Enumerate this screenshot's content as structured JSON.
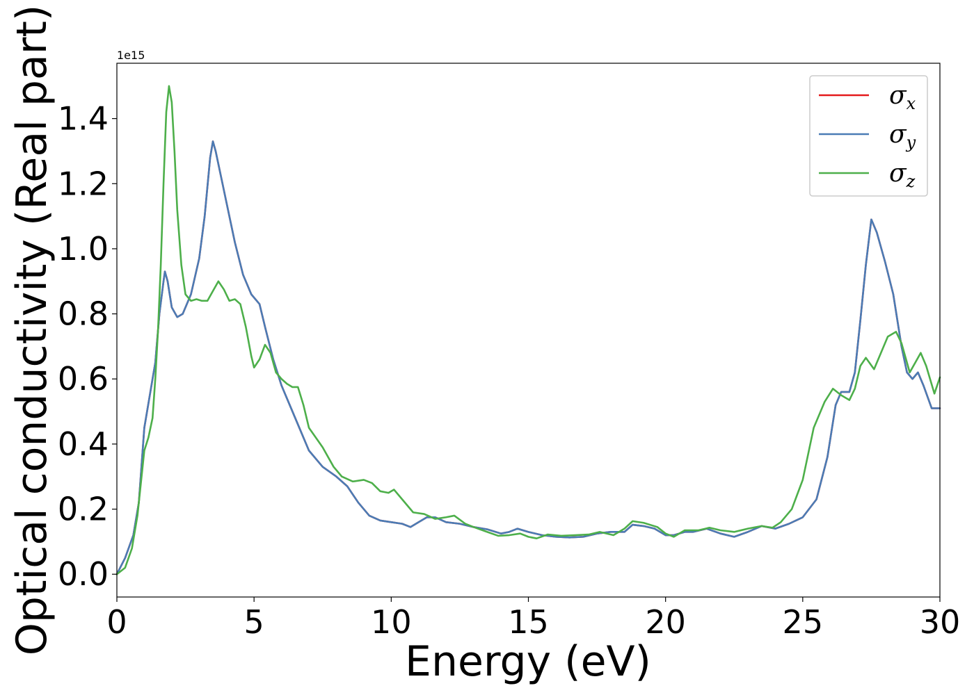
{
  "chart_data": {
    "type": "line",
    "title": "",
    "xlabel": "Energy (eV)",
    "ylabel": "Optical conductivity (Real part)",
    "y_offset_label": "1e15",
    "xlim": [
      0,
      30
    ],
    "ylim": [
      -0.07,
      1.57
    ],
    "xticks": [
      0,
      5,
      10,
      15,
      20,
      25,
      30
    ],
    "yticks": [
      0.0,
      0.2,
      0.4,
      0.6,
      0.8,
      1.0,
      1.2,
      1.4
    ],
    "grid": false,
    "legend_position": "top-right",
    "series": [
      {
        "name": "σx",
        "symbol": "σ",
        "subscript": "x",
        "color": "#e41a1c",
        "points": [
          [
            0,
            0
          ],
          [
            0.3,
            0.05
          ],
          [
            0.6,
            0.12
          ],
          [
            0.8,
            0.22
          ],
          [
            1.0,
            0.45
          ],
          [
            1.2,
            0.55
          ],
          [
            1.4,
            0.65
          ],
          [
            1.55,
            0.8
          ],
          [
            1.7,
            0.9
          ],
          [
            1.75,
            0.93
          ],
          [
            1.85,
            0.9
          ],
          [
            2.0,
            0.82
          ],
          [
            2.2,
            0.79
          ],
          [
            2.4,
            0.8
          ],
          [
            2.7,
            0.86
          ],
          [
            3.0,
            0.97
          ],
          [
            3.2,
            1.1
          ],
          [
            3.4,
            1.28
          ],
          [
            3.5,
            1.33
          ],
          [
            3.6,
            1.3
          ],
          [
            3.8,
            1.22
          ],
          [
            4.0,
            1.14
          ],
          [
            4.3,
            1.02
          ],
          [
            4.6,
            0.92
          ],
          [
            4.9,
            0.86
          ],
          [
            5.2,
            0.83
          ],
          [
            5.4,
            0.76
          ],
          [
            5.7,
            0.66
          ],
          [
            6.0,
            0.58
          ],
          [
            6.5,
            0.48
          ],
          [
            7.0,
            0.38
          ],
          [
            7.5,
            0.33
          ],
          [
            8.0,
            0.3
          ],
          [
            8.4,
            0.27
          ],
          [
            8.8,
            0.22
          ],
          [
            9.2,
            0.18
          ],
          [
            9.6,
            0.165
          ],
          [
            10.0,
            0.16
          ],
          [
            10.4,
            0.155
          ],
          [
            10.7,
            0.145
          ],
          [
            11.0,
            0.16
          ],
          [
            11.3,
            0.175
          ],
          [
            11.6,
            0.175
          ],
          [
            12.0,
            0.16
          ],
          [
            12.5,
            0.155
          ],
          [
            13.0,
            0.145
          ],
          [
            13.5,
            0.138
          ],
          [
            14.0,
            0.125
          ],
          [
            14.3,
            0.13
          ],
          [
            14.6,
            0.14
          ],
          [
            15.0,
            0.13
          ],
          [
            15.5,
            0.12
          ],
          [
            16.0,
            0.115
          ],
          [
            16.5,
            0.113
          ],
          [
            17.0,
            0.115
          ],
          [
            17.5,
            0.125
          ],
          [
            18.0,
            0.13
          ],
          [
            18.5,
            0.13
          ],
          [
            18.8,
            0.152
          ],
          [
            19.2,
            0.148
          ],
          [
            19.6,
            0.14
          ],
          [
            20.0,
            0.12
          ],
          [
            20.3,
            0.12
          ],
          [
            20.7,
            0.13
          ],
          [
            21.0,
            0.13
          ],
          [
            21.5,
            0.14
          ],
          [
            22.0,
            0.125
          ],
          [
            22.5,
            0.115
          ],
          [
            23.0,
            0.13
          ],
          [
            23.5,
            0.148
          ],
          [
            24.0,
            0.14
          ],
          [
            24.5,
            0.155
          ],
          [
            25.0,
            0.175
          ],
          [
            25.5,
            0.23
          ],
          [
            25.9,
            0.36
          ],
          [
            26.2,
            0.52
          ],
          [
            26.4,
            0.56
          ],
          [
            26.7,
            0.56
          ],
          [
            26.9,
            0.62
          ],
          [
            27.1,
            0.78
          ],
          [
            27.3,
            0.95
          ],
          [
            27.5,
            1.09
          ],
          [
            27.7,
            1.05
          ],
          [
            28.0,
            0.96
          ],
          [
            28.3,
            0.86
          ],
          [
            28.6,
            0.7
          ],
          [
            28.8,
            0.62
          ],
          [
            29.0,
            0.6
          ],
          [
            29.2,
            0.62
          ],
          [
            29.4,
            0.58
          ],
          [
            29.7,
            0.51
          ],
          [
            30.0,
            0.51
          ]
        ]
      },
      {
        "name": "σy",
        "symbol": "σ",
        "subscript": "y",
        "color": "#4a7cb5",
        "points": [
          [
            0,
            0
          ],
          [
            0.3,
            0.05
          ],
          [
            0.6,
            0.12
          ],
          [
            0.8,
            0.22
          ],
          [
            1.0,
            0.45
          ],
          [
            1.2,
            0.55
          ],
          [
            1.4,
            0.65
          ],
          [
            1.55,
            0.8
          ],
          [
            1.7,
            0.9
          ],
          [
            1.75,
            0.93
          ],
          [
            1.85,
            0.9
          ],
          [
            2.0,
            0.82
          ],
          [
            2.2,
            0.79
          ],
          [
            2.4,
            0.8
          ],
          [
            2.7,
            0.86
          ],
          [
            3.0,
            0.97
          ],
          [
            3.2,
            1.1
          ],
          [
            3.4,
            1.28
          ],
          [
            3.5,
            1.33
          ],
          [
            3.6,
            1.3
          ],
          [
            3.8,
            1.22
          ],
          [
            4.0,
            1.14
          ],
          [
            4.3,
            1.02
          ],
          [
            4.6,
            0.92
          ],
          [
            4.9,
            0.86
          ],
          [
            5.2,
            0.83
          ],
          [
            5.4,
            0.76
          ],
          [
            5.7,
            0.66
          ],
          [
            6.0,
            0.58
          ],
          [
            6.5,
            0.48
          ],
          [
            7.0,
            0.38
          ],
          [
            7.5,
            0.33
          ],
          [
            8.0,
            0.3
          ],
          [
            8.4,
            0.27
          ],
          [
            8.8,
            0.22
          ],
          [
            9.2,
            0.18
          ],
          [
            9.6,
            0.165
          ],
          [
            10.0,
            0.16
          ],
          [
            10.4,
            0.155
          ],
          [
            10.7,
            0.145
          ],
          [
            11.0,
            0.16
          ],
          [
            11.3,
            0.175
          ],
          [
            11.6,
            0.175
          ],
          [
            12.0,
            0.16
          ],
          [
            12.5,
            0.155
          ],
          [
            13.0,
            0.145
          ],
          [
            13.5,
            0.138
          ],
          [
            14.0,
            0.125
          ],
          [
            14.3,
            0.13
          ],
          [
            14.6,
            0.14
          ],
          [
            15.0,
            0.13
          ],
          [
            15.5,
            0.12
          ],
          [
            16.0,
            0.115
          ],
          [
            16.5,
            0.113
          ],
          [
            17.0,
            0.115
          ],
          [
            17.5,
            0.125
          ],
          [
            18.0,
            0.13
          ],
          [
            18.5,
            0.13
          ],
          [
            18.8,
            0.152
          ],
          [
            19.2,
            0.148
          ],
          [
            19.6,
            0.14
          ],
          [
            20.0,
            0.12
          ],
          [
            20.3,
            0.12
          ],
          [
            20.7,
            0.13
          ],
          [
            21.0,
            0.13
          ],
          [
            21.5,
            0.14
          ],
          [
            22.0,
            0.125
          ],
          [
            22.5,
            0.115
          ],
          [
            23.0,
            0.13
          ],
          [
            23.5,
            0.148
          ],
          [
            24.0,
            0.14
          ],
          [
            24.5,
            0.155
          ],
          [
            25.0,
            0.175
          ],
          [
            25.5,
            0.23
          ],
          [
            25.9,
            0.36
          ],
          [
            26.2,
            0.52
          ],
          [
            26.4,
            0.56
          ],
          [
            26.7,
            0.56
          ],
          [
            26.9,
            0.62
          ],
          [
            27.1,
            0.78
          ],
          [
            27.3,
            0.95
          ],
          [
            27.5,
            1.09
          ],
          [
            27.7,
            1.05
          ],
          [
            28.0,
            0.96
          ],
          [
            28.3,
            0.86
          ],
          [
            28.6,
            0.7
          ],
          [
            28.8,
            0.62
          ],
          [
            29.0,
            0.6
          ],
          [
            29.2,
            0.62
          ],
          [
            29.4,
            0.58
          ],
          [
            29.7,
            0.51
          ],
          [
            30.0,
            0.51
          ]
        ]
      },
      {
        "name": "σz",
        "symbol": "σ",
        "subscript": "z",
        "color": "#4daf4a",
        "points": [
          [
            0,
            0
          ],
          [
            0.3,
            0.02
          ],
          [
            0.55,
            0.08
          ],
          [
            0.75,
            0.18
          ],
          [
            0.9,
            0.3
          ],
          [
            1.0,
            0.38
          ],
          [
            1.15,
            0.42
          ],
          [
            1.3,
            0.48
          ],
          [
            1.4,
            0.6
          ],
          [
            1.5,
            0.75
          ],
          [
            1.6,
            0.95
          ],
          [
            1.7,
            1.2
          ],
          [
            1.8,
            1.42
          ],
          [
            1.9,
            1.5
          ],
          [
            2.0,
            1.45
          ],
          [
            2.1,
            1.3
          ],
          [
            2.2,
            1.12
          ],
          [
            2.35,
            0.95
          ],
          [
            2.5,
            0.86
          ],
          [
            2.7,
            0.84
          ],
          [
            2.9,
            0.845
          ],
          [
            3.1,
            0.84
          ],
          [
            3.3,
            0.84
          ],
          [
            3.5,
            0.87
          ],
          [
            3.7,
            0.9
          ],
          [
            3.9,
            0.875
          ],
          [
            4.1,
            0.84
          ],
          [
            4.3,
            0.845
          ],
          [
            4.5,
            0.83
          ],
          [
            4.7,
            0.76
          ],
          [
            4.9,
            0.67
          ],
          [
            5.0,
            0.635
          ],
          [
            5.2,
            0.66
          ],
          [
            5.4,
            0.705
          ],
          [
            5.6,
            0.68
          ],
          [
            5.8,
            0.62
          ],
          [
            6.0,
            0.6
          ],
          [
            6.2,
            0.585
          ],
          [
            6.4,
            0.575
          ],
          [
            6.6,
            0.575
          ],
          [
            6.8,
            0.52
          ],
          [
            7.0,
            0.45
          ],
          [
            7.5,
            0.39
          ],
          [
            7.9,
            0.33
          ],
          [
            8.2,
            0.3
          ],
          [
            8.6,
            0.285
          ],
          [
            9.0,
            0.29
          ],
          [
            9.3,
            0.28
          ],
          [
            9.6,
            0.255
          ],
          [
            9.9,
            0.25
          ],
          [
            10.1,
            0.26
          ],
          [
            10.4,
            0.23
          ],
          [
            10.8,
            0.19
          ],
          [
            11.2,
            0.185
          ],
          [
            11.6,
            0.17
          ],
          [
            12.0,
            0.175
          ],
          [
            12.3,
            0.18
          ],
          [
            12.7,
            0.155
          ],
          [
            13.0,
            0.145
          ],
          [
            13.5,
            0.13
          ],
          [
            13.9,
            0.118
          ],
          [
            14.3,
            0.12
          ],
          [
            14.7,
            0.125
          ],
          [
            15.0,
            0.115
          ],
          [
            15.3,
            0.11
          ],
          [
            15.7,
            0.122
          ],
          [
            16.2,
            0.118
          ],
          [
            16.7,
            0.12
          ],
          [
            17.2,
            0.122
          ],
          [
            17.6,
            0.13
          ],
          [
            18.1,
            0.12
          ],
          [
            18.5,
            0.14
          ],
          [
            18.8,
            0.163
          ],
          [
            19.2,
            0.158
          ],
          [
            19.7,
            0.145
          ],
          [
            20.0,
            0.125
          ],
          [
            20.3,
            0.115
          ],
          [
            20.7,
            0.135
          ],
          [
            21.2,
            0.135
          ],
          [
            21.6,
            0.143
          ],
          [
            22.0,
            0.135
          ],
          [
            22.5,
            0.13
          ],
          [
            23.0,
            0.14
          ],
          [
            23.5,
            0.148
          ],
          [
            23.9,
            0.143
          ],
          [
            24.2,
            0.16
          ],
          [
            24.6,
            0.2
          ],
          [
            25.0,
            0.29
          ],
          [
            25.4,
            0.45
          ],
          [
            25.8,
            0.53
          ],
          [
            26.1,
            0.57
          ],
          [
            26.4,
            0.55
          ],
          [
            26.7,
            0.535
          ],
          [
            26.9,
            0.57
          ],
          [
            27.1,
            0.64
          ],
          [
            27.3,
            0.665
          ],
          [
            27.6,
            0.63
          ],
          [
            27.9,
            0.69
          ],
          [
            28.1,
            0.73
          ],
          [
            28.4,
            0.745
          ],
          [
            28.6,
            0.71
          ],
          [
            28.9,
            0.62
          ],
          [
            29.1,
            0.65
          ],
          [
            29.3,
            0.68
          ],
          [
            29.5,
            0.64
          ],
          [
            29.8,
            0.555
          ],
          [
            30.0,
            0.605
          ]
        ]
      }
    ]
  }
}
